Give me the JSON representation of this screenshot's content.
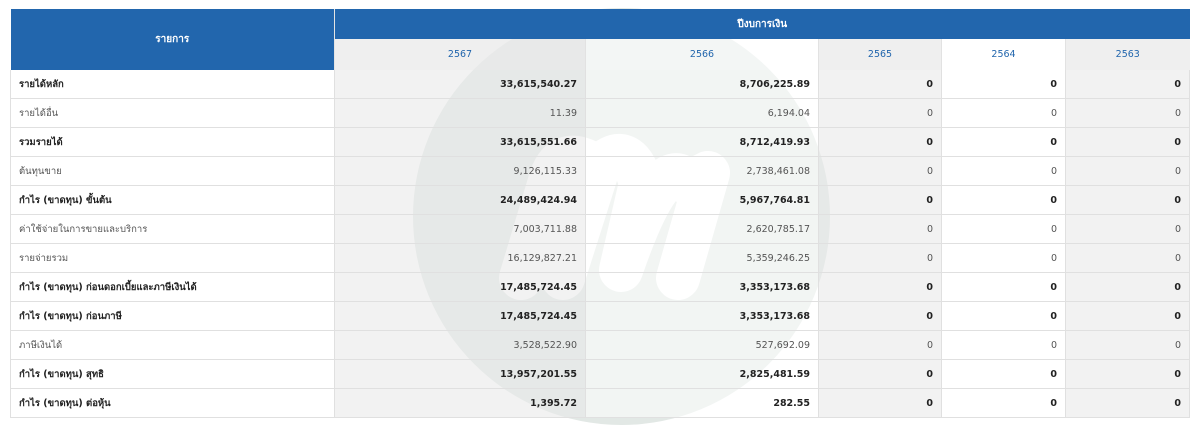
{
  "table": {
    "label_header": "รายการ",
    "group_header": "ปีงบการเงิน",
    "years": [
      "2567",
      "2566",
      "2565",
      "2564",
      "2563"
    ],
    "rows": [
      {
        "label": "รายได้หลัก",
        "bold": true,
        "values": [
          "33,615,540.27",
          "8,706,225.89",
          "0",
          "0",
          "0"
        ]
      },
      {
        "label": "รายได้อื่น",
        "bold": false,
        "values": [
          "11.39",
          "6,194.04",
          "0",
          "0",
          "0"
        ]
      },
      {
        "label": "รวมรายได้",
        "bold": true,
        "values": [
          "33,615,551.66",
          "8,712,419.93",
          "0",
          "0",
          "0"
        ]
      },
      {
        "label": "ต้นทุนขาย",
        "bold": false,
        "values": [
          "9,126,115.33",
          "2,738,461.08",
          "0",
          "0",
          "0"
        ]
      },
      {
        "label": "กำไร (ขาดทุน) ขั้นต้น",
        "bold": true,
        "values": [
          "24,489,424.94",
          "5,967,764.81",
          "0",
          "0",
          "0"
        ]
      },
      {
        "label": "ค่าใช้จ่ายในการขายและบริการ",
        "bold": false,
        "values": [
          "7,003,711.88",
          "2,620,785.17",
          "0",
          "0",
          "0"
        ]
      },
      {
        "label": "รายจ่ายรวม",
        "bold": false,
        "values": [
          "16,129,827.21",
          "5,359,246.25",
          "0",
          "0",
          "0"
        ]
      },
      {
        "label": "กำไร (ขาดทุน) ก่อนดอกเบี้ยและภาษีเงินได้",
        "bold": true,
        "values": [
          "17,485,724.45",
          "3,353,173.68",
          "0",
          "0",
          "0"
        ]
      },
      {
        "label": "กำไร (ขาดทุน) ก่อนภาษี",
        "bold": true,
        "values": [
          "17,485,724.45",
          "3,353,173.68",
          "0",
          "0",
          "0"
        ]
      },
      {
        "label": "ภาษีเงินได้",
        "bold": false,
        "values": [
          "3,528,522.90",
          "527,692.09",
          "0",
          "0",
          "0"
        ]
      },
      {
        "label": "กำไร (ขาดทุน) สุทธิ",
        "bold": true,
        "values": [
          "13,957,201.55",
          "2,825,481.59",
          "0",
          "0",
          "0"
        ]
      },
      {
        "label": "กำไร (ขาดทุน) ต่อหุ้น",
        "bold": true,
        "values": [
          "1,395.72",
          "282.55",
          "0",
          "0",
          "0"
        ]
      }
    ]
  },
  "colors": {
    "header_bg": "#2266ad",
    "year_text": "#2266ad",
    "watermark_circle": "#e2e8e5",
    "watermark_mark": "#ffffff"
  },
  "watermark": {
    "icon": "logo-watermark-icon"
  }
}
